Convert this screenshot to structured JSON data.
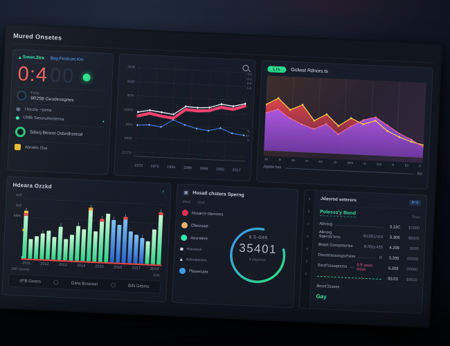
{
  "header": {
    "title": "Mured Onsetes"
  },
  "theme": {
    "accent_green": "#2ee6a8",
    "accent_blue": "#4da3ff",
    "accent_red": "#f25e5e",
    "accent_pink": "#f4426f",
    "accent_yellow": "#f2d13c",
    "accent_purple": "#9a55e0",
    "gauge_blue": "#3f8df2",
    "gauge_green": "#2ee07a",
    "panel_bg": "#151a24"
  },
  "clock_panel": {
    "links": [
      {
        "label": "Sown.2tra"
      },
      {
        "label": "Bay,Festront Km"
      }
    ],
    "timer_main": "0:4",
    "timer_dim": "00",
    "rows": [
      {
        "line1": "Fetal",
        "line2": "9R25B Geodesegrtes"
      },
      {
        "line1": "I foczta ~soma"
      },
      {
        "line1": "UMB Sassrumesterea"
      },
      {
        "line1": "Sdsrq Besret Odsrdhsresd"
      },
      {
        "line1": "Abrskts Gse"
      }
    ]
  },
  "area_panel": {
    "badge": "Lts",
    "title": "Golwat Rdnors.ts",
    "footer_label": "Jqaste hss",
    "footer_value": "Iss"
  },
  "bar_panel": {
    "title": "Hdeara Ozzkd",
    "trend_icon": "↑",
    "footer_left": ",28D 3ssrtsk",
    "footer_right": "0/35",
    "tabs": [
      "d/*B Gssrrs",
      "Gsrw Bsseson",
      "B/fs Gssrss"
    ]
  },
  "gauge_panel": {
    "header_icon": "▣",
    "title": "Hosatl chstora Sperng",
    "col_labels": [
      "Msss",
      "Osst"
    ],
    "legend": [
      {
        "label": "Nssarcs-sterrores",
        "color": "#e82f52"
      },
      {
        "label": "Ofesruwe",
        "color": "#e9b06b"
      },
      {
        "label": "Aesrstere",
        "color": "#2ee6a8"
      },
      {
        "label": "Rdssdssh",
        "color": "#d8dee8"
      },
      {
        "label": "Adssrqtssses",
        "color": "#d8dee8"
      },
      {
        "label": "Plasercare",
        "color": "#3b9df0"
      }
    ],
    "center_top": "$ S-G8S",
    "center_value": "35401",
    "center_bottom": "$ dispense"
  },
  "table_panel": {
    "rail_icons": [
      "9",
      "5",
      "0",
      "0",
      "6",
      "0",
      "0"
    ],
    "header": "Jdasred seterers",
    "header_chip": "8=3",
    "title": "Polesss'y Bond",
    "title_right": "Tssss",
    "rows": [
      {
        "label": "Allrrerg",
        "mid": "",
        "v1": "3.12C",
        "v2": "$1500"
      },
      {
        "label": "Allrrerg Sqersts'srss",
        "mid": "B12B1/415",
        "v1": "5.305",
        "v2": "$8000"
      },
      {
        "label": "Bsqst Gssspsturtss",
        "mid": "B.05/y.455",
        "v1": "4.205",
        "v2": ".5000"
      },
      {
        "label": "Ossstrtessssqsrt'stss",
        "mid": "O",
        "v1": "3.205",
        "v2": "00000"
      },
      {
        "label": "Ssrsf'ssssqssrss",
        "mid": "5.5' psss tssss",
        "v1": "5.205",
        "v2": "00000"
      },
      {
        "label": "",
        "mid": "",
        "v1": "$3.03",
        "v2": "$9500"
      },
      {
        "label": "Bssst'2sssss",
        "mid": "",
        "v1": "",
        "v2": ""
      }
    ],
    "action_label": "Gay"
  },
  "chart_data": [
    {
      "type": "line",
      "name": "top-line-chart",
      "y_tick_labels": [
        "3600",
        "3026",
        "90%",
        "GDP2",
        "96%",
        "MDB",
        "CCTV"
      ],
      "x_tick_labels": [
        "1970",
        "1975",
        "1984",
        "1989",
        "1996",
        "1995",
        "2017"
      ],
      "right_labels_top": [
        "0-0",
        "5-0",
        "8-8",
        "5-8"
      ],
      "right_labels_mid": [
        "76",
        "97",
        "6"
      ],
      "ylim": [
        0,
        100
      ],
      "grid": true,
      "legend_position": "none",
      "series": [
        {
          "name": "white",
          "color": "#e6ecf5",
          "values": [
            54,
            57,
            55,
            53,
            64,
            63,
            64,
            69,
            67,
            71
          ]
        },
        {
          "name": "pink",
          "color": "#f4426f",
          "values": [
            49,
            53,
            50,
            48,
            60,
            59,
            60,
            65,
            63,
            68
          ]
        },
        {
          "name": "blue",
          "color": "#3a6bc8",
          "values": [
            37,
            38,
            36,
            46,
            40,
            36,
            34,
            38,
            32,
            30
          ]
        }
      ]
    },
    {
      "type": "area",
      "name": "right-area-chart",
      "x_tick_labels": [
        "b3",
        "9i",
        "93",
        "M",
        "EU",
        "Lb",
        "M40",
        "Q",
        "643",
        "B",
        "E3",
        "D"
      ],
      "ylim": [
        0,
        100
      ],
      "grid": true,
      "series": [
        {
          "name": "red",
          "line_color": "#f2c84b",
          "fill_top": "rgba(230,70,75,0.95)",
          "fill_bottom": "rgba(150,45,80,0.55)",
          "values": [
            66,
            76,
            60,
            68,
            46,
            56,
            40,
            52,
            44,
            50,
            36,
            28,
            22,
            18
          ]
        },
        {
          "name": "purple",
          "line_color": "#ef6a9b",
          "fill_top": "rgba(170,90,230,0.95)",
          "fill_bottom": "rgba(110,60,190,0.75)",
          "values": [
            54,
            60,
            48,
            40,
            34,
            42,
            28,
            40,
            50,
            55,
            44,
            33,
            25,
            15
          ]
        }
      ]
    },
    {
      "type": "bar",
      "name": "bottom-bar-chart",
      "y_tick_labels": [
        "6x0",
        "6x2",
        "4B%"
      ],
      "x_tick_labels": [
        "2011",
        "2012",
        "2013",
        "2014",
        "2015",
        "2016",
        "2017",
        "2018"
      ],
      "ylim": [
        0,
        80
      ],
      "values": [
        62,
        26,
        30,
        34,
        38,
        30,
        44,
        28,
        34,
        46,
        42,
        70,
        40,
        56,
        64,
        56,
        50,
        60,
        42,
        38,
        34,
        30,
        46,
        68
      ],
      "blue_indices": [
        15,
        16,
        17,
        18,
        19,
        20
      ],
      "tips": {
        "0": "red_yellow",
        "11": "#f0a03c",
        "13": "#e84a4a",
        "17": "#e84a4a",
        "23": "#e84a4a"
      },
      "wick_indices": [
        0,
        3,
        6,
        9,
        11,
        13,
        15,
        17,
        20,
        23
      ],
      "axis_markers": [
        {
          "y": 52,
          "color": "#f2d13c"
        },
        {
          "y": 90,
          "color": "#2ee6a8"
        }
      ],
      "baseline_color": "#e04545"
    },
    {
      "type": "pie",
      "name": "arc-gauge",
      "style": "open-arc-donut",
      "value": 35401,
      "value_label": "35401",
      "top_label": "$ S-G8S",
      "bottom_label": "$ dispense",
      "arc_colors": [
        "#3f8df2",
        "#2ee07a"
      ],
      "arc_sweep_deg": 295
    }
  ]
}
